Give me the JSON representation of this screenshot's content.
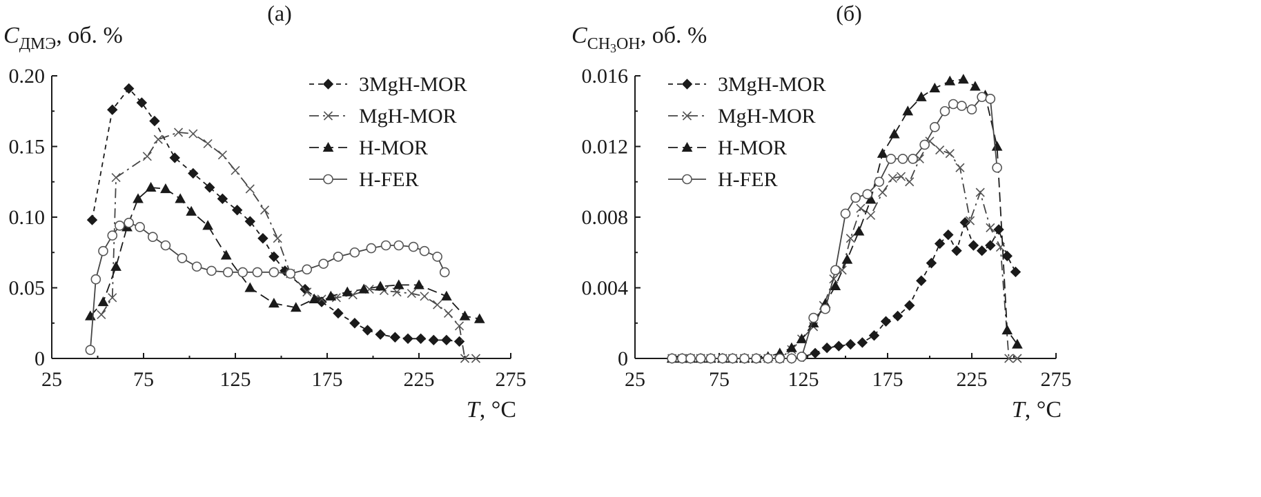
{
  "chart_data": [
    {
      "type": "line",
      "panel_label": "(a)",
      "ylabel_main": "C",
      "ylabel_sub": "ДМЭ",
      "ylabel_unit": ", об. %",
      "xlabel_main": "T",
      "xlabel_unit": ", °C",
      "xlim": [
        25,
        275
      ],
      "ylim": [
        0,
        0.2
      ],
      "xticks": [
        "25",
        "75",
        "125",
        "175",
        "225",
        "275"
      ],
      "yticks": [
        "0",
        "0.05",
        "0.10",
        "0.15",
        "0.20"
      ],
      "legend_position": "top-right",
      "series": [
        {
          "name": "3MgH-MOR",
          "marker": "diamond",
          "line": "dashed",
          "x": [
            47,
            58,
            67,
            74,
            81,
            92,
            102,
            111,
            118,
            126,
            133,
            140,
            146,
            152,
            163,
            172,
            181,
            190,
            197,
            204,
            212,
            219,
            226,
            233,
            240,
            247
          ],
          "y": [
            0.098,
            0.176,
            0.191,
            0.181,
            0.168,
            0.142,
            0.131,
            0.121,
            0.113,
            0.105,
            0.097,
            0.085,
            0.072,
            0.062,
            0.049,
            0.04,
            0.032,
            0.025,
            0.02,
            0.017,
            0.015,
            0.014,
            0.014,
            0.013,
            0.013,
            0.012
          ]
        },
        {
          "name": "MgH-MOR",
          "marker": "cross",
          "line": "dashdot",
          "x": [
            52,
            58,
            60,
            77,
            83,
            94,
            102,
            110,
            118,
            125,
            133,
            141,
            148,
            155,
            164,
            172,
            180,
            189,
            198,
            206,
            213,
            221,
            228,
            235,
            241,
            247,
            250,
            256
          ],
          "y": [
            0.031,
            0.043,
            0.128,
            0.143,
            0.155,
            0.16,
            0.159,
            0.152,
            0.144,
            0.133,
            0.12,
            0.105,
            0.085,
            0.06,
            0.047,
            0.042,
            0.043,
            0.045,
            0.049,
            0.048,
            0.047,
            0.046,
            0.044,
            0.038,
            0.032,
            0.023,
            0.0,
            0.0
          ]
        },
        {
          "name": "H-MOR",
          "marker": "triangle",
          "line": "longdash",
          "x": [
            46,
            53,
            60,
            66,
            72,
            79,
            87,
            95,
            101,
            110,
            120,
            133,
            146,
            158,
            168,
            177,
            186,
            195,
            204,
            214,
            225,
            240,
            250,
            258
          ],
          "y": [
            0.03,
            0.04,
            0.065,
            0.093,
            0.113,
            0.121,
            0.12,
            0.113,
            0.104,
            0.094,
            0.073,
            0.05,
            0.039,
            0.036,
            0.042,
            0.044,
            0.047,
            0.049,
            0.051,
            0.052,
            0.052,
            0.044,
            0.03,
            0.028
          ]
        },
        {
          "name": "H-FER",
          "marker": "circle",
          "line": "solid",
          "x": [
            46,
            49,
            53,
            58,
            62,
            67,
            73,
            80,
            87,
            96,
            104,
            112,
            121,
            129,
            137,
            146,
            155,
            164,
            173,
            181,
            190,
            199,
            207,
            214,
            222,
            228,
            235,
            239
          ],
          "y": [
            0.006,
            0.056,
            0.076,
            0.087,
            0.094,
            0.096,
            0.093,
            0.086,
            0.08,
            0.071,
            0.065,
            0.062,
            0.061,
            0.061,
            0.061,
            0.061,
            0.06,
            0.063,
            0.067,
            0.072,
            0.075,
            0.078,
            0.08,
            0.08,
            0.079,
            0.076,
            0.072,
            0.061
          ]
        }
      ]
    },
    {
      "type": "line",
      "panel_label": "(б)",
      "ylabel_main": "C",
      "ylabel_sub": "CH",
      "ylabel_sub_index": "3",
      "ylabel_sub_tail": "OH",
      "ylabel_unit": ", об. %",
      "xlabel_main": "T",
      "xlabel_unit": ", °C",
      "xlim": [
        25,
        275
      ],
      "ylim": [
        0,
        0.016
      ],
      "xticks": [
        "25",
        "75",
        "125",
        "175",
        "225",
        "275"
      ],
      "yticks": [
        "0",
        "0.004",
        "0.008",
        "0.012",
        "0.016"
      ],
      "legend_position": "top-left",
      "series": [
        {
          "name": "3MgH-MOR",
          "marker": "diamond",
          "line": "dashed",
          "x": [
            47,
            53,
            58,
            64,
            70,
            77,
            83,
            90,
            97,
            104,
            111,
            118,
            125,
            132,
            139,
            146,
            153,
            160,
            167,
            174,
            181,
            188,
            195,
            201,
            206,
            211,
            216,
            221,
            226,
            231,
            236,
            241,
            246,
            251
          ],
          "y": [
            0,
            0,
            0,
            0,
            0,
            0,
            0,
            0,
            0,
            0,
            0,
            0,
            0.0001,
            0.0003,
            0.0006,
            0.0007,
            0.0008,
            0.0009,
            0.0013,
            0.0021,
            0.0024,
            0.003,
            0.0044,
            0.0054,
            0.0065,
            0.007,
            0.0061,
            0.0077,
            0.0064,
            0.0061,
            0.0064,
            0.0073,
            0.0058,
            0.0049
          ]
        },
        {
          "name": "MgH-MOR",
          "marker": "cross",
          "line": "dashdot",
          "x": [
            47,
            53,
            58,
            64,
            70,
            77,
            83,
            90,
            97,
            104,
            111,
            118,
            124,
            131,
            137,
            143,
            148,
            153,
            159,
            165,
            172,
            178,
            183,
            188,
            194,
            200,
            206,
            212,
            218,
            224,
            230,
            236,
            242,
            247,
            252
          ],
          "y": [
            0,
            0,
            0,
            0,
            0,
            0,
            0,
            0,
            0,
            0,
            0,
            0.0005,
            0.0011,
            0.0018,
            0.003,
            0.0045,
            0.005,
            0.0068,
            0.0085,
            0.0081,
            0.0094,
            0.0102,
            0.0103,
            0.01,
            0.0113,
            0.0123,
            0.0118,
            0.0116,
            0.0108,
            0.0078,
            0.0094,
            0.0074,
            0.0063,
            0.0,
            0.0
          ]
        },
        {
          "name": "H-MOR",
          "marker": "triangle",
          "line": "longdash",
          "x": [
            47,
            53,
            58,
            64,
            70,
            77,
            83,
            90,
            97,
            104,
            111,
            118,
            124,
            131,
            138,
            144,
            151,
            158,
            165,
            172,
            179,
            187,
            195,
            203,
            212,
            220,
            227,
            233,
            240,
            246,
            252
          ],
          "y": [
            0,
            0,
            0,
            0,
            0,
            0,
            0,
            0,
            0,
            0.0001,
            0.0003,
            0.0006,
            0.0011,
            0.002,
            0.0031,
            0.0041,
            0.0056,
            0.0072,
            0.009,
            0.0116,
            0.0127,
            0.014,
            0.0148,
            0.0153,
            0.0157,
            0.0158,
            0.0154,
            0.0149,
            0.012,
            0.0016,
            0.0008
          ]
        },
        {
          "name": "H-FER",
          "marker": "circle",
          "line": "solid",
          "x": [
            47,
            53,
            58,
            64,
            70,
            77,
            83,
            90,
            97,
            104,
            111,
            118,
            124,
            131,
            138,
            144,
            150,
            156,
            163,
            170,
            177,
            184,
            190,
            197,
            203,
            209,
            214,
            219,
            225,
            231,
            236,
            240
          ],
          "y": [
            0,
            0,
            0,
            0,
            0,
            0,
            0,
            0,
            0,
            0,
            0,
            0,
            0.0001,
            0.0023,
            0.0028,
            0.005,
            0.0082,
            0.0091,
            0.0093,
            0.01,
            0.0113,
            0.0113,
            0.0113,
            0.0121,
            0.0131,
            0.014,
            0.0144,
            0.0143,
            0.0141,
            0.0148,
            0.0147,
            0.0108
          ]
        }
      ]
    }
  ]
}
